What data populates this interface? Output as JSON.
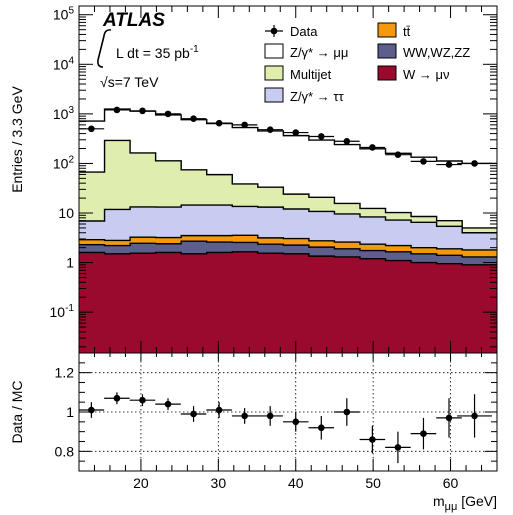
{
  "chart_data": [
    {
      "type": "stacked-histogram",
      "ylabel": "Entries / 3.3 GeV",
      "yscale": "log",
      "ylim": [
        0.015,
        150000
      ],
      "xlim": [
        12,
        66
      ],
      "yticks": [
        {
          "v": 0.1,
          "m": "10",
          "e": "-1"
        },
        {
          "v": 1,
          "m": "1",
          "e": ""
        },
        {
          "v": 10,
          "m": "10",
          "e": ""
        },
        {
          "v": 100,
          "m": "10",
          "e": "2"
        },
        {
          "v": 1000,
          "m": "10",
          "e": "3"
        },
        {
          "v": 10000,
          "m": "10",
          "e": "4"
        },
        {
          "v": 100000,
          "m": "10",
          "e": "5"
        }
      ],
      "bin_edges": [
        12,
        15.3,
        18.6,
        21.9,
        25.2,
        28.5,
        31.8,
        35.1,
        38.4,
        41.7,
        45.0,
        48.3,
        51.6,
        54.9,
        58.2,
        61.5,
        66.0
      ],
      "stack": [
        {
          "name": "W → μν",
          "color": "#9a0a2e",
          "values": [
            1.6,
            1.5,
            1.55,
            1.6,
            1.5,
            1.6,
            1.65,
            1.55,
            1.5,
            1.35,
            1.3,
            1.2,
            1.1,
            1.0,
            0.95,
            0.9
          ]
        },
        {
          "name": "WW,WZ,ZZ",
          "color": "#5c5f8c",
          "values": [
            0.7,
            0.7,
            0.9,
            0.8,
            1.2,
            1.0,
            0.9,
            0.8,
            0.75,
            0.7,
            0.6,
            0.55,
            0.55,
            0.5,
            0.45,
            0.4
          ]
        },
        {
          "name": "tt̄",
          "color": "#f5990c",
          "values": [
            0.6,
            0.6,
            0.8,
            0.8,
            0.8,
            0.9,
            1.0,
            0.8,
            0.8,
            0.7,
            0.7,
            0.6,
            0.55,
            0.5,
            0.5,
            0.5
          ]
        },
        {
          "name": "Z/γ* → ττ",
          "color": "#c9ccf1",
          "values": [
            4,
            9,
            10,
            10,
            11,
            11,
            10,
            10,
            9,
            8,
            7,
            6,
            5,
            4.5,
            3.5,
            2.2
          ]
        },
        {
          "name": "Multijet",
          "color": "#dfeeae",
          "values": [
            60,
            280,
            150,
            100,
            60,
            45,
            25,
            20,
            12,
            10,
            6,
            4,
            3,
            2,
            1.6,
            1.0
          ]
        },
        {
          "name": "Z/γ* → μμ",
          "color": "#ffffff",
          "values": [
            650,
            960,
            970,
            840,
            690,
            580,
            490,
            420,
            340,
            275,
            225,
            185,
            150,
            125,
            105,
            95
          ]
        }
      ],
      "data_points": {
        "name": "Data",
        "x": [
          13.6,
          16.9,
          20.2,
          23.5,
          26.8,
          30.1,
          33.4,
          36.7,
          40.0,
          43.3,
          46.6,
          49.9,
          53.2,
          56.5,
          59.8,
          63.1
        ],
        "y": [
          500,
          1200,
          1150,
          1000,
          800,
          650,
          600,
          480,
          420,
          350,
          280,
          210,
          150,
          110,
          95,
          100
        ]
      },
      "legend": [
        {
          "label": "Data",
          "kind": "marker"
        },
        {
          "label": "tt̄",
          "kind": "fill",
          "color": "#f5990c"
        },
        {
          "label": "Z/γ* → μμ",
          "kind": "fill",
          "color": "#ffffff"
        },
        {
          "label": "WW,WZ,ZZ",
          "kind": "fill",
          "color": "#5c5f8c"
        },
        {
          "label": "Multijet",
          "kind": "fill",
          "color": "#dfeeae"
        },
        {
          "label": "W → μν",
          "kind": "fill",
          "color": "#9a0a2e"
        },
        {
          "label": "Z/γ* → ττ",
          "kind": "fill",
          "color": "#c9ccf1"
        }
      ],
      "annotations": {
        "experiment": "ATLAS",
        "lumi_prefix": "L dt = 35 pb",
        "lumi_exp": "-1",
        "energy_root": "√",
        "energy_text": "s=7 TeV"
      }
    },
    {
      "type": "scatter-errorbar",
      "ylabel": "Data / MC",
      "xlabel": "m",
      "xlabel_sub": "μμ",
      "xlabel_unit": " [GeV]",
      "xlim": [
        12,
        66
      ],
      "ylim": [
        0.7,
        1.3
      ],
      "xticks": [
        {
          "v": 20,
          "label": "20"
        },
        {
          "v": 30,
          "label": "30"
        },
        {
          "v": 40,
          "label": "40"
        },
        {
          "v": 50,
          "label": "50"
        },
        {
          "v": 60,
          "label": "60"
        }
      ],
      "yticks": [
        {
          "v": 0.8,
          "label": "0.8"
        },
        {
          "v": 1.0,
          "label": "1"
        },
        {
          "v": 1.2,
          "label": "1.2"
        }
      ],
      "grid": true,
      "x": [
        13.6,
        16.9,
        20.2,
        23.5,
        26.8,
        30.1,
        33.4,
        36.7,
        40.0,
        43.3,
        46.6,
        49.9,
        53.2,
        56.5,
        59.8,
        63.1
      ],
      "y": [
        1.01,
        1.07,
        1.06,
        1.04,
        0.99,
        1.01,
        0.98,
        0.98,
        0.95,
        0.92,
        1.0,
        0.86,
        0.82,
        0.89,
        0.97,
        0.98
      ],
      "yerr": [
        0.04,
        0.03,
        0.03,
        0.03,
        0.04,
        0.04,
        0.04,
        0.05,
        0.05,
        0.06,
        0.07,
        0.07,
        0.08,
        0.08,
        0.1,
        0.11
      ]
    }
  ]
}
